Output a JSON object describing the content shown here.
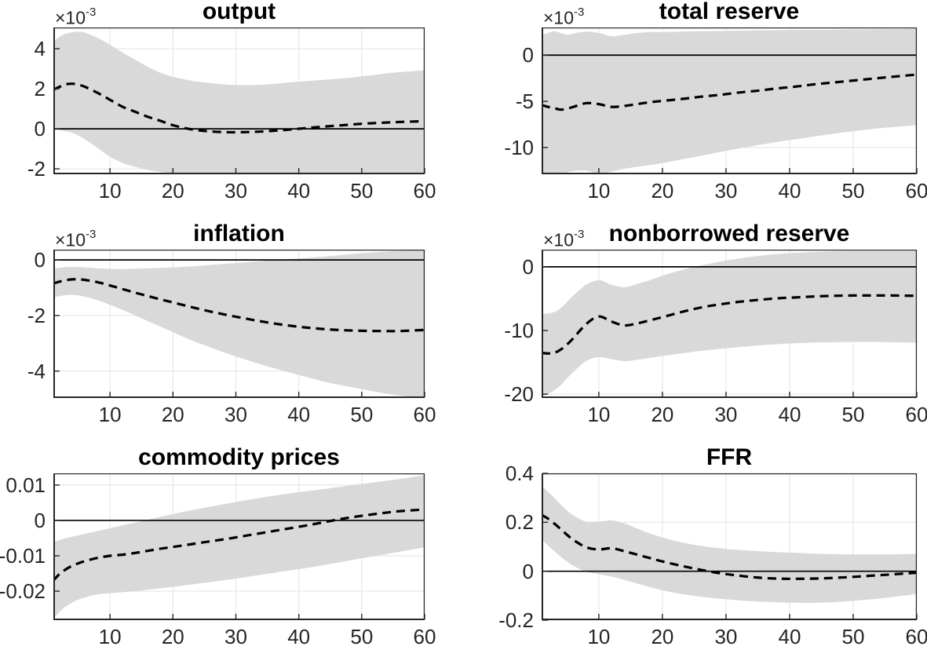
{
  "figure": {
    "background_color": "#ffffff",
    "description": "Grid of six impulse response charts with 90% confidence bands"
  },
  "styles": {
    "band_color": "#d9d9d9",
    "grid_color": "#e7e7e7",
    "axis_color": "#262626",
    "median_line_color": "#000000",
    "zero_line_color": "#000000",
    "tick_label_color": "#262626",
    "title_color": "#000000"
  },
  "chart_data": [
    {
      "type": "line_with_confidence_band",
      "title": "output",
      "y_scale_prefix": "×10",
      "y_scale_exponent": "-3",
      "xlim": [
        1,
        60
      ],
      "ylim": [
        -2.27,
        5.06
      ],
      "xtick_values": [
        10,
        20,
        30,
        40,
        50,
        60
      ],
      "xtick_labels": [
        "10",
        "20",
        "30",
        "40",
        "50",
        "60"
      ],
      "ytick_values": [
        -2,
        0,
        2,
        4
      ],
      "ytick_labels": [
        "-2",
        "0",
        "2",
        "4"
      ],
      "zero_line": 0,
      "x": [
        1,
        2,
        3,
        4,
        5,
        6,
        8,
        10,
        12,
        14,
        16,
        18,
        20,
        23,
        26,
        29,
        32,
        35,
        38,
        41,
        44,
        47,
        50,
        53,
        56,
        60
      ],
      "median": [
        1.95,
        2.1,
        2.22,
        2.25,
        2.2,
        2.1,
        1.8,
        1.45,
        1.1,
        0.85,
        0.6,
        0.4,
        0.18,
        -0.03,
        -0.13,
        -0.17,
        -0.16,
        -0.12,
        -0.05,
        0.03,
        0.11,
        0.18,
        0.25,
        0.3,
        0.34,
        0.38
      ],
      "band_upper": [
        4.35,
        4.6,
        4.75,
        4.82,
        4.85,
        4.8,
        4.55,
        4.2,
        3.8,
        3.45,
        3.1,
        2.8,
        2.6,
        2.4,
        2.28,
        2.2,
        2.18,
        2.22,
        2.3,
        2.38,
        2.45,
        2.52,
        2.62,
        2.73,
        2.83,
        2.92
      ],
      "band_lower": [
        -0.05,
        -0.08,
        -0.12,
        -0.2,
        -0.35,
        -0.52,
        -0.95,
        -1.4,
        -1.7,
        -1.9,
        -2.05,
        -2.15,
        -2.25,
        -2.33,
        -2.4,
        -2.45,
        -2.48,
        -2.5,
        -2.5,
        -2.5,
        -2.5,
        -2.5,
        -2.5,
        -2.5,
        -2.5,
        -2.5
      ]
    },
    {
      "type": "line_with_confidence_band",
      "title": "total reserve",
      "y_scale_prefix": "×10",
      "y_scale_exponent": "-3",
      "xlim": [
        1,
        60
      ],
      "ylim": [
        -12.9,
        3.0
      ],
      "xtick_values": [
        10,
        20,
        30,
        40,
        50,
        60
      ],
      "xtick_labels": [
        "10",
        "20",
        "30",
        "40",
        "50",
        "60"
      ],
      "ytick_values": [
        -10,
        -5,
        0
      ],
      "ytick_labels": [
        "-10",
        "-5",
        "0"
      ],
      "zero_line": 0,
      "x": [
        1,
        2,
        3,
        4,
        5,
        6,
        8,
        10,
        12,
        14,
        16,
        18,
        20,
        23,
        26,
        29,
        32,
        35,
        38,
        41,
        44,
        47,
        50,
        53,
        56,
        60
      ],
      "median": [
        -5.4,
        -5.6,
        -5.75,
        -5.9,
        -5.8,
        -5.6,
        -5.2,
        -5.3,
        -5.6,
        -5.5,
        -5.3,
        -5.1,
        -4.95,
        -4.75,
        -4.5,
        -4.3,
        -4.05,
        -3.85,
        -3.6,
        -3.4,
        -3.15,
        -2.95,
        -2.75,
        -2.55,
        -2.35,
        -2.1
      ],
      "band_upper": [
        2.2,
        2.4,
        2.6,
        2.4,
        2.2,
        2.35,
        2.55,
        2.4,
        2.05,
        2.2,
        2.4,
        2.5,
        2.5,
        2.55,
        2.6,
        2.62,
        2.65,
        2.68,
        2.7,
        2.72,
        2.74,
        2.76,
        2.78,
        2.8,
        2.82,
        2.85
      ],
      "band_lower": [
        -12.7,
        -12.95,
        -13.1,
        -12.9,
        -12.7,
        -12.55,
        -12.5,
        -12.85,
        -12.6,
        -12.3,
        -12.1,
        -11.9,
        -11.7,
        -11.3,
        -10.9,
        -10.5,
        -10.1,
        -9.75,
        -9.4,
        -9.1,
        -8.8,
        -8.5,
        -8.25,
        -8.0,
        -7.8,
        -7.6
      ]
    },
    {
      "type": "line_with_confidence_band",
      "title": "inflation",
      "y_scale_prefix": "×10",
      "y_scale_exponent": "-3",
      "xlim": [
        1,
        60
      ],
      "ylim": [
        -4.97,
        0.37
      ],
      "xtick_values": [
        10,
        20,
        30,
        40,
        50,
        60
      ],
      "xtick_labels": [
        "10",
        "20",
        "30",
        "40",
        "50",
        "60"
      ],
      "ytick_values": [
        -4,
        -2,
        0
      ],
      "ytick_labels": [
        "-4",
        "-2",
        "0"
      ],
      "zero_line": 0,
      "x": [
        1,
        2,
        3,
        4,
        5,
        6,
        8,
        10,
        12,
        14,
        16,
        18,
        20,
        23,
        26,
        29,
        32,
        35,
        38,
        41,
        44,
        47,
        50,
        53,
        56,
        60
      ],
      "median": [
        -0.85,
        -0.78,
        -0.73,
        -0.7,
        -0.7,
        -0.72,
        -0.8,
        -0.92,
        -1.05,
        -1.18,
        -1.3,
        -1.42,
        -1.53,
        -1.7,
        -1.86,
        -2.0,
        -2.13,
        -2.25,
        -2.35,
        -2.43,
        -2.49,
        -2.53,
        -2.55,
        -2.56,
        -2.56,
        -2.52
      ],
      "band_upper": [
        -0.33,
        -0.28,
        -0.26,
        -0.25,
        -0.26,
        -0.27,
        -0.3,
        -0.32,
        -0.33,
        -0.32,
        -0.3,
        -0.29,
        -0.27,
        -0.23,
        -0.18,
        -0.13,
        -0.08,
        -0.03,
        0.02,
        0.07,
        0.12,
        0.18,
        0.24,
        0.29,
        0.33,
        0.36
      ],
      "band_lower": [
        -1.35,
        -1.3,
        -1.27,
        -1.26,
        -1.28,
        -1.32,
        -1.45,
        -1.62,
        -1.8,
        -2.0,
        -2.2,
        -2.4,
        -2.6,
        -2.9,
        -3.15,
        -3.4,
        -3.62,
        -3.83,
        -4.02,
        -4.2,
        -4.38,
        -4.52,
        -4.65,
        -4.78,
        -4.88,
        -5.0
      ]
    },
    {
      "type": "line_with_confidence_band",
      "title": "nonborrowed reserve",
      "y_scale_prefix": "×10",
      "y_scale_exponent": "-3",
      "xlim": [
        1,
        60
      ],
      "ylim": [
        -20.6,
        2.7
      ],
      "xtick_values": [
        10,
        20,
        30,
        40,
        50,
        60
      ],
      "xtick_labels": [
        "10",
        "20",
        "30",
        "40",
        "50",
        "60"
      ],
      "ytick_values": [
        -20,
        -10,
        0
      ],
      "ytick_labels": [
        "-20",
        "-10",
        "0"
      ],
      "zero_line": 0,
      "x": [
        1,
        2,
        3,
        4,
        5,
        6,
        8,
        10,
        12,
        14,
        16,
        18,
        20,
        23,
        26,
        29,
        32,
        35,
        38,
        41,
        44,
        47,
        50,
        53,
        56,
        60
      ],
      "median": [
        -13.5,
        -13.6,
        -13.5,
        -13.0,
        -12.2,
        -11.2,
        -9.0,
        -7.8,
        -8.6,
        -9.2,
        -8.9,
        -8.4,
        -7.9,
        -7.1,
        -6.4,
        -5.9,
        -5.5,
        -5.2,
        -4.95,
        -4.8,
        -4.65,
        -4.55,
        -4.5,
        -4.5,
        -4.5,
        -4.55
      ],
      "band_upper": [
        -7.4,
        -7.3,
        -7.1,
        -6.5,
        -5.5,
        -4.5,
        -2.8,
        -2.1,
        -2.8,
        -3.2,
        -2.7,
        -2.1,
        -1.4,
        -0.5,
        0.2,
        0.8,
        1.3,
        1.7,
        2.0,
        2.2,
        2.35,
        2.45,
        2.5,
        2.5,
        2.5,
        2.5
      ],
      "band_lower": [
        -20.3,
        -20.0,
        -19.4,
        -18.6,
        -17.5,
        -16.5,
        -14.8,
        -14.2,
        -14.5,
        -14.8,
        -14.6,
        -14.3,
        -14.0,
        -13.6,
        -13.2,
        -12.9,
        -12.6,
        -12.35,
        -12.15,
        -12.0,
        -11.9,
        -11.85,
        -11.8,
        -11.8,
        -11.85,
        -11.9
      ]
    },
    {
      "type": "line_with_confidence_band",
      "title": "commodity prices",
      "y_scale_prefix": "",
      "y_scale_exponent": "",
      "xlim": [
        1,
        60
      ],
      "ylim": [
        -0.0282,
        0.0133
      ],
      "xtick_values": [
        10,
        20,
        30,
        40,
        50,
        60
      ],
      "xtick_labels": [
        "10",
        "20",
        "30",
        "40",
        "50",
        "60"
      ],
      "ytick_values": [
        -0.02,
        -0.01,
        0,
        0.01
      ],
      "ytick_labels": [
        "-0.02",
        "-0.01",
        "0",
        "0.01"
      ],
      "zero_line": 0,
      "x": [
        1,
        2,
        3,
        4,
        5,
        6,
        8,
        10,
        12,
        14,
        16,
        18,
        20,
        23,
        26,
        29,
        32,
        35,
        38,
        41,
        44,
        47,
        50,
        53,
        56,
        60
      ],
      "median": [
        -0.017,
        -0.0151,
        -0.0138,
        -0.0128,
        -0.0121,
        -0.0115,
        -0.0106,
        -0.01,
        -0.0097,
        -0.0092,
        -0.0086,
        -0.008,
        -0.0075,
        -0.0067,
        -0.0059,
        -0.0051,
        -0.0042,
        -0.0033,
        -0.0024,
        -0.0015,
        -0.0005,
        0.0005,
        0.0013,
        0.002,
        0.0026,
        0.0031
      ],
      "band_upper": [
        -0.0062,
        -0.0055,
        -0.005,
        -0.0046,
        -0.0042,
        -0.0038,
        -0.003,
        -0.0022,
        -0.0014,
        -0.0006,
        0.0002,
        0.001,
        0.0018,
        0.0029,
        0.0039,
        0.0049,
        0.0058,
        0.0067,
        0.0075,
        0.0082,
        0.0089,
        0.0096,
        0.0103,
        0.011,
        0.0117,
        0.0128
      ],
      "band_lower": [
        -0.0278,
        -0.0258,
        -0.0243,
        -0.0232,
        -0.0224,
        -0.0218,
        -0.0209,
        -0.0206,
        -0.0203,
        -0.02,
        -0.0196,
        -0.0192,
        -0.0188,
        -0.0181,
        -0.0174,
        -0.0167,
        -0.0159,
        -0.0151,
        -0.0143,
        -0.0135,
        -0.0126,
        -0.0117,
        -0.0107,
        -0.0098,
        -0.0089,
        -0.0076
      ]
    },
    {
      "type": "line_with_confidence_band",
      "title": "FFR",
      "y_scale_prefix": "",
      "y_scale_exponent": "",
      "xlim": [
        1,
        60
      ],
      "ylim": [
        -0.2,
        0.4
      ],
      "xtick_values": [
        10,
        20,
        30,
        40,
        50,
        60
      ],
      "xtick_labels": [
        "10",
        "20",
        "30",
        "40",
        "50",
        "60"
      ],
      "ytick_values": [
        -0.2,
        0,
        0.2,
        0.4
      ],
      "ytick_labels": [
        "-0.2",
        "0",
        "0.2",
        "0.4"
      ],
      "zero_line": 0,
      "x": [
        1,
        2,
        3,
        4,
        5,
        6,
        8,
        10,
        12,
        14,
        16,
        18,
        20,
        23,
        26,
        29,
        32,
        35,
        38,
        41,
        44,
        47,
        50,
        53,
        56,
        60
      ],
      "median": [
        0.23,
        0.215,
        0.195,
        0.172,
        0.149,
        0.128,
        0.098,
        0.089,
        0.094,
        0.082,
        0.068,
        0.054,
        0.04,
        0.022,
        0.006,
        -0.008,
        -0.018,
        -0.026,
        -0.03,
        -0.031,
        -0.03,
        -0.027,
        -0.023,
        -0.018,
        -0.013,
        -0.006
      ],
      "band_upper": [
        0.35,
        0.325,
        0.3,
        0.272,
        0.248,
        0.228,
        0.203,
        0.203,
        0.208,
        0.196,
        0.175,
        0.155,
        0.138,
        0.118,
        0.104,
        0.094,
        0.087,
        0.082,
        0.078,
        0.075,
        0.072,
        0.07,
        0.069,
        0.069,
        0.069,
        0.071
      ],
      "band_lower": [
        0.13,
        0.105,
        0.082,
        0.06,
        0.04,
        0.022,
        -0.002,
        -0.012,
        -0.022,
        -0.035,
        -0.05,
        -0.065,
        -0.078,
        -0.093,
        -0.104,
        -0.112,
        -0.119,
        -0.124,
        -0.127,
        -0.129,
        -0.129,
        -0.126,
        -0.121,
        -0.114,
        -0.106,
        -0.093
      ]
    }
  ]
}
